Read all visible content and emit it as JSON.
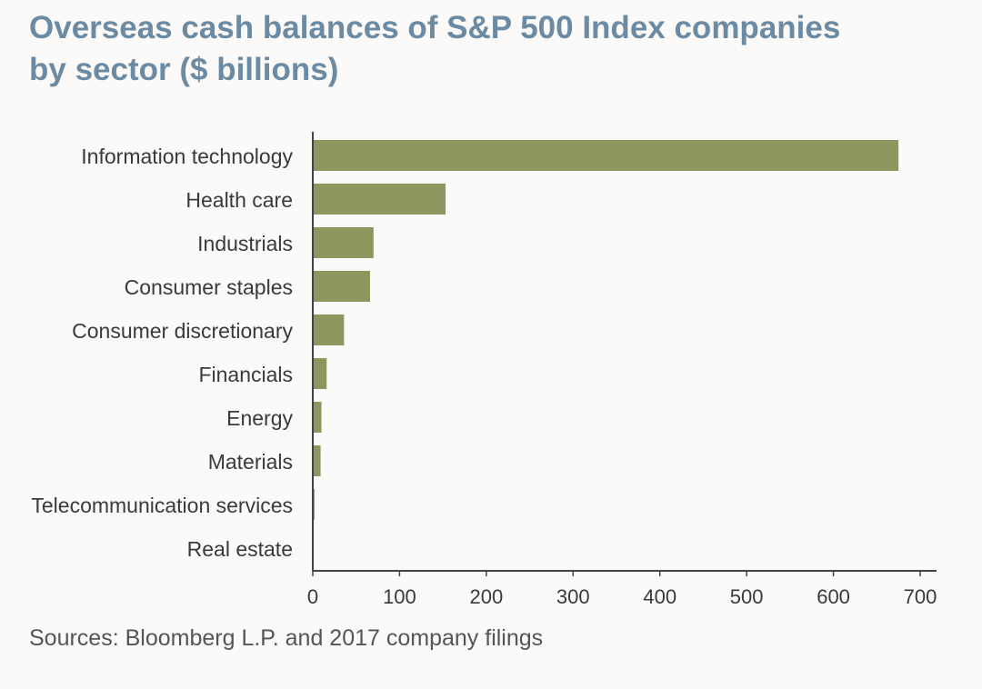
{
  "title": {
    "line1": "Overseas cash balances of S&P 500 Index companies",
    "line2": "by sector ($ billions)"
  },
  "source": "Sources: Bloomberg L.P. and 2017 company filings",
  "colors": {
    "bar": "#8c9760",
    "title": "#6b8aa3",
    "axis": "#444444",
    "label": "#3a3a3a"
  },
  "chart_data": {
    "type": "bar",
    "orientation": "horizontal",
    "title": "Overseas cash balances of S&P 500 Index companies by sector ($ billions)",
    "xlabel": "",
    "ylabel": "",
    "xlim": [
      0,
      700
    ],
    "xticks": [
      0,
      100,
      200,
      300,
      400,
      500,
      600,
      700
    ],
    "categories": [
      "Information technology",
      "Health care",
      "Industrials",
      "Consumer staples",
      "Consumer discretionary",
      "Financials",
      "Energy",
      "Materials",
      "Telecommunication services",
      "Real estate"
    ],
    "values": [
      675,
      153,
      70,
      66,
      36,
      16,
      10,
      9,
      2,
      1
    ],
    "grid": false,
    "legend": "none"
  }
}
